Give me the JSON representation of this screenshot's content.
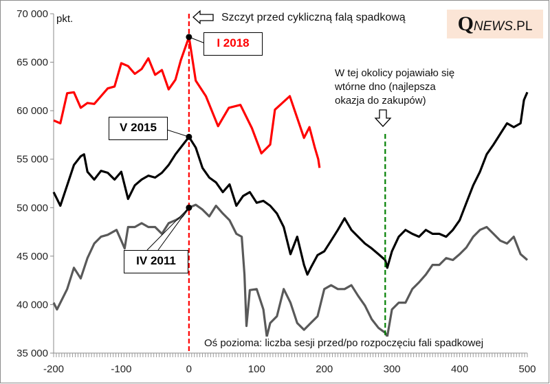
{
  "chart_data": {
    "type": "line",
    "title": "Szczyt przed cykliczną falą spadkową",
    "ylabel": "pkt.",
    "xlabel": "Oś pozioma: liczba sesji przed/po rozpoczęciu fali spadkowej",
    "xlim": [
      -200,
      500
    ],
    "ylim": [
      35000,
      70000
    ],
    "xticks": [
      "-200",
      "-100",
      "0",
      "100",
      "200",
      "300",
      "400",
      "500"
    ],
    "xtick_values": [
      -200,
      -100,
      0,
      100,
      200,
      300,
      400,
      500
    ],
    "yticks": [
      "35 000",
      "40 000",
      "45 000",
      "50 000",
      "55 000",
      "60 000",
      "65 000",
      "70 000"
    ],
    "ytick_values": [
      35000,
      40000,
      45000,
      50000,
      55000,
      60000,
      65000,
      70000
    ],
    "grid": false,
    "series": [
      {
        "name": "I 2018",
        "color": "#ff0000",
        "x": [
          -200,
          -190,
          -180,
          -170,
          -160,
          -150,
          -140,
          -130,
          -120,
          -110,
          -100,
          -90,
          -80,
          -70,
          -60,
          -50,
          -40,
          -30,
          -20,
          -12,
          -2,
          0,
          10,
          25,
          43,
          59,
          76,
          93,
          107,
          120,
          127,
          149,
          170,
          178,
          186,
          191,
          193
        ],
        "y": [
          59000,
          58700,
          61800,
          61900,
          60300,
          60800,
          60700,
          61500,
          62300,
          62500,
          64900,
          64600,
          63800,
          64300,
          65400,
          63700,
          64200,
          62200,
          63200,
          65200,
          67200,
          67600,
          63100,
          61500,
          58400,
          60300,
          60600,
          58200,
          55600,
          56500,
          60100,
          61500,
          57200,
          58300,
          56200,
          55000,
          54100
        ]
      },
      {
        "name": "V 2015",
        "color": "#000000",
        "x": [
          -200,
          -190,
          -180,
          -170,
          -160,
          -155,
          -150,
          -140,
          -130,
          -120,
          -110,
          -100,
          -90,
          -80,
          -70,
          -60,
          -50,
          -40,
          -30,
          -20,
          -10,
          0,
          10,
          20,
          30,
          40,
          50,
          60,
          70,
          80,
          90,
          100,
          110,
          120,
          130,
          140,
          150,
          160,
          170,
          175,
          180,
          190,
          200,
          210,
          220,
          230,
          240,
          250,
          260,
          270,
          280,
          290,
          293,
          300,
          310,
          320,
          330,
          340,
          350,
          360,
          370,
          380,
          390,
          400,
          410,
          420,
          430,
          440,
          450,
          460,
          470,
          480,
          490,
          495,
          500
        ],
        "y": [
          51600,
          50200,
          52300,
          54400,
          55300,
          55500,
          53700,
          52900,
          53800,
          53600,
          52900,
          53700,
          50900,
          52300,
          52900,
          53300,
          53100,
          53600,
          54400,
          55500,
          56400,
          57300,
          56200,
          54100,
          53100,
          52600,
          51600,
          52400,
          50200,
          51200,
          51600,
          50500,
          50700,
          50200,
          49400,
          48000,
          45200,
          47000,
          44100,
          43100,
          43800,
          45100,
          45500,
          46600,
          47700,
          48900,
          47700,
          47000,
          46300,
          45800,
          45200,
          44600,
          43800,
          45500,
          47000,
          47700,
          47300,
          47000,
          47700,
          47300,
          47300,
          47000,
          47700,
          48700,
          50500,
          52300,
          53700,
          55500,
          56500,
          57600,
          58700,
          58300,
          58700,
          61100,
          61900
        ]
      },
      {
        "name": "IV 2011",
        "color": "#595959",
        "x": [
          -200,
          -195,
          -180,
          -170,
          -160,
          -150,
          -140,
          -130,
          -120,
          -107,
          -100,
          -95,
          -90,
          -80,
          -70,
          -60,
          -50,
          -40,
          -30,
          -20,
          -10,
          0,
          10,
          20,
          30,
          40,
          50,
          60,
          70,
          78,
          82,
          85,
          90,
          100,
          110,
          115,
          120,
          130,
          140,
          150,
          160,
          170,
          180,
          190,
          200,
          210,
          220,
          230,
          240,
          250,
          260,
          270,
          280,
          290,
          293,
          300,
          310,
          320,
          330,
          340,
          350,
          360,
          370,
          380,
          390,
          400,
          410,
          420,
          430,
          440,
          450,
          460,
          470,
          480,
          490,
          500
        ],
        "y": [
          40200,
          39500,
          41600,
          43800,
          42700,
          44800,
          46300,
          47000,
          47200,
          47700,
          46600,
          45800,
          48000,
          48000,
          48400,
          48000,
          48000,
          47300,
          48400,
          48700,
          49100,
          50000,
          50300,
          49800,
          49100,
          50200,
          49400,
          48700,
          47300,
          47000,
          43100,
          37800,
          41500,
          41600,
          39500,
          36700,
          38100,
          38800,
          41600,
          40200,
          38100,
          37400,
          38100,
          38800,
          41600,
          42000,
          41600,
          41600,
          42000,
          40900,
          39900,
          38500,
          37600,
          37100,
          36700,
          39500,
          40200,
          40200,
          41600,
          42300,
          43100,
          44100,
          44100,
          44800,
          44600,
          45200,
          45900,
          47000,
          47700,
          48000,
          47300,
          46600,
          46300,
          47000,
          45200,
          44600
        ]
      }
    ],
    "markers": [
      {
        "series": "I 2018",
        "x": 0,
        "y": 67600,
        "label": "I 2018"
      },
      {
        "series": "V 2015",
        "x": 0,
        "y": 57300,
        "label": "V 2015"
      },
      {
        "series": "IV 2011",
        "x": 0,
        "y": 50000,
        "label": "IV 2011"
      }
    ],
    "vlines": [
      {
        "x": 0,
        "color": "#ff0000",
        "style": "dashed"
      },
      {
        "x": 290,
        "color": "#008000",
        "style": "dashed"
      }
    ],
    "annotations": [
      "Szczyt przed cykliczną falą spadkową",
      "W tej okolicy pojawiało się",
      "wtórne dno (najlepsza",
      "okazja do zakupów)"
    ]
  },
  "logo": {
    "q": "Q",
    "news": "NEWS",
    "pl": ".PL"
  }
}
